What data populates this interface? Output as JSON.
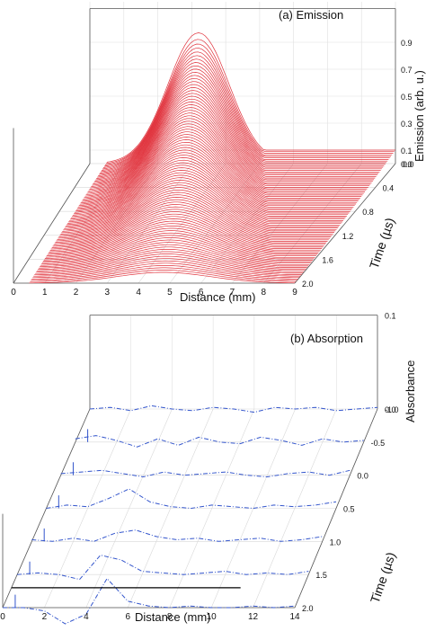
{
  "chart_data": [
    {
      "type": "line",
      "projection": "3d-waterfall",
      "title": "(a) Emission",
      "xlabel": "Distance (mm)",
      "ylabel": "Time (µs)",
      "zlabel": "Emission (arb. u.)",
      "x_ticks": [
        "0",
        "1",
        "2",
        "3",
        "4",
        "5",
        "6",
        "7",
        "8",
        "9"
      ],
      "y_ticks": [
        "0.0",
        "0.4",
        "0.8",
        "1.2",
        "1.6",
        "2.0"
      ],
      "z_ticks": [
        "0.0",
        "0.1",
        "0.3",
        "0.5",
        "0.7",
        "0.9"
      ],
      "xlim": [
        0,
        9
      ],
      "ylim": [
        0,
        2.0
      ],
      "zlim": [
        0,
        1.0
      ],
      "grid": true,
      "color": "#e0303a",
      "series_count": 90,
      "profile": {
        "description": "Gaussian emission peak along distance; amplitude decays and peak shifts with time",
        "x_start": 0.5,
        "peak_x_at_t0": 3.2,
        "peak_x_at_t2": 4.8,
        "peak_height_at_t0": 0.97,
        "peak_height_at_t2": 0.08,
        "tail_level": 0.1
      }
    },
    {
      "type": "line",
      "projection": "3d-waterfall",
      "title": "(b) Absorption",
      "xlabel": "Distance (mm)",
      "ylabel": "Time (µs)",
      "zlabel": "Absorbance",
      "x_ticks": [
        "0",
        "2",
        "4",
        "6",
        "8",
        "10",
        "12",
        "14"
      ],
      "y_ticks": [
        "-1.0",
        "-0.5",
        "0.0",
        "0.5",
        "1.0",
        "1.5",
        "2.0"
      ],
      "z_ticks": [
        "0.0",
        "0.1"
      ],
      "xlim": [
        0,
        14
      ],
      "ylim": [
        -1.0,
        2.0
      ],
      "zlim": [
        0,
        0.1
      ],
      "grid": true,
      "color": "#3355cc",
      "series": [
        {
          "time": -1.0,
          "y": [
            0.0,
            0.001,
            -0.001,
            0.002,
            0.0,
            -0.001,
            0.001,
            0.0,
            -0.002,
            0.001,
            0.0,
            0.001,
            -0.001,
            0.0,
            0.001
          ]
        },
        {
          "time": -0.5,
          "y": [
            0.002,
            0.004,
            0.001,
            -0.003,
            0.002,
            -0.002,
            0.003,
            0.0,
            -0.001,
            0.003,
            0.001,
            -0.002,
            0.002,
            0.0,
            0.001
          ]
        },
        {
          "time": 0.0,
          "y": [
            0.001,
            0.002,
            0.003,
            0.001,
            -0.001,
            0.002,
            0.0,
            0.001,
            0.002,
            0.0,
            -0.001,
            0.001,
            0.002,
            0.0,
            0.003
          ]
        },
        {
          "time": 0.5,
          "y": [
            0.0,
            0.002,
            0.001,
            0.006,
            0.012,
            0.004,
            0.001,
            0.0,
            0.002,
            0.001,
            0.0,
            0.002,
            0.001,
            0.002,
            0.004
          ]
        },
        {
          "time": 1.0,
          "y": [
            0.001,
            0.0,
            0.002,
            0.0,
            0.005,
            0.007,
            0.003,
            0.001,
            0.002,
            0.0,
            0.001,
            0.002,
            0.0,
            0.001,
            0.003
          ]
        },
        {
          "time": 1.5,
          "y": [
            0.0,
            0.001,
            0.0,
            -0.003,
            0.012,
            0.009,
            0.002,
            0.001,
            0.0,
            0.001,
            0.002,
            0.0,
            0.001,
            0.0,
            0.002
          ]
        },
        {
          "time": 2.0,
          "y": [
            0.0,
            0.0,
            -0.002,
            -0.01,
            -0.004,
            0.018,
            0.004,
            0.001,
            0.0,
            0.001,
            0.0,
            0.0,
            0.001,
            0.0,
            0.001
          ]
        }
      ]
    }
  ]
}
